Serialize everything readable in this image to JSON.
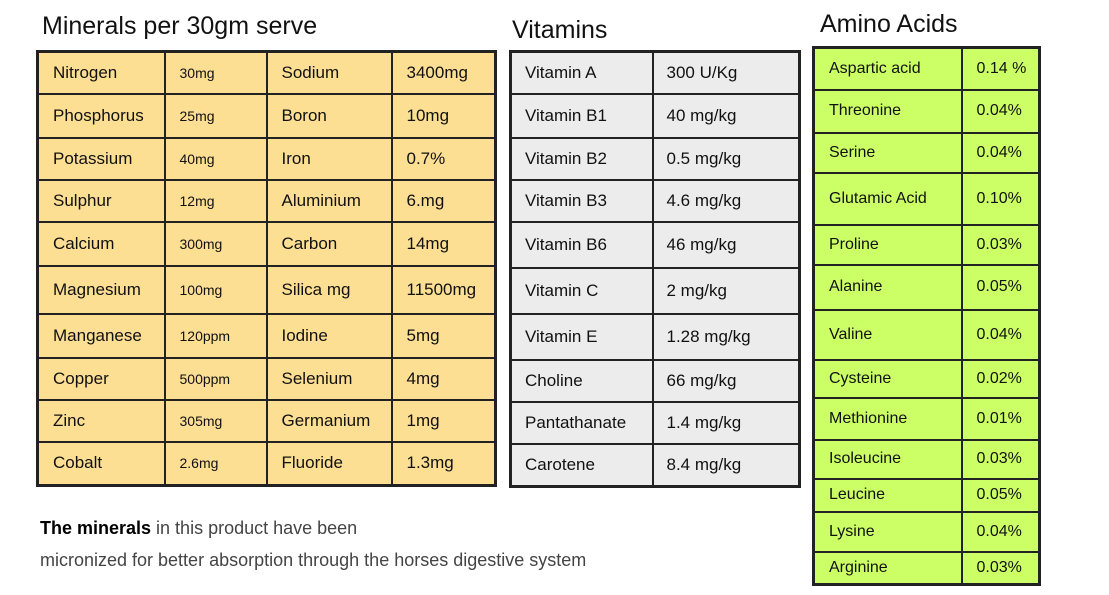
{
  "titles": {
    "minerals": "Minerals per 30gm serve",
    "vitamins": "Vitamins",
    "amino": "Amino Acids"
  },
  "minerals": [
    [
      "Nitrogen",
      "30mg",
      "Sodium",
      "3400mg"
    ],
    [
      "Phosphorus",
      "25mg",
      "Boron",
      "10mg"
    ],
    [
      "Potassium",
      "40mg",
      "Iron",
      "0.7%"
    ],
    [
      "Sulphur",
      "12mg",
      "Aluminium",
      "6.mg"
    ],
    [
      "Calcium",
      "300mg",
      "Carbon",
      "14mg"
    ],
    [
      "Magnesium",
      "100mg",
      "Silica  mg",
      "11500mg"
    ],
    [
      "Manganese",
      "120ppm",
      "Iodine",
      " 5mg"
    ],
    [
      "Copper",
      "500ppm",
      "Selenium",
      "4mg"
    ],
    [
      "Zinc",
      "305mg",
      "Germanium",
      "1mg"
    ],
    [
      "Cobalt",
      "2.6mg",
      "Fluoride",
      "1.3mg"
    ]
  ],
  "vitamins": [
    [
      "Vitamin A",
      "300 U/Kg"
    ],
    [
      "Vitamin B1",
      "40 mg/kg"
    ],
    [
      "Vitamin B2",
      "0.5 mg/kg"
    ],
    [
      "Vitamin B3",
      "4.6  mg/kg"
    ],
    [
      "Vitamin B6",
      "46 mg/kg"
    ],
    [
      "Vitamin C",
      "2 mg/kg"
    ],
    [
      "Vitamin E",
      "1.28 mg/kg"
    ],
    [
      "Choline",
      "66 mg/kg"
    ],
    [
      "Pantathanate",
      "1.4 mg/kg"
    ],
    [
      "Carotene",
      "8.4 mg/kg"
    ]
  ],
  "amino": [
    [
      "Aspartic acid",
      "0.14 %"
    ],
    [
      "Threonine",
      "0.04%"
    ],
    [
      "Serine",
      "0.04%"
    ],
    [
      "Glutamic Acid",
      "0.10%"
    ],
    [
      "Proline",
      "0.03%"
    ],
    [
      "Alanine",
      "0.05%"
    ],
    [
      "Valine",
      "0.04%"
    ],
    [
      "Cysteine",
      "0.02%"
    ],
    [
      "Methionine",
      "0.01%"
    ],
    [
      "Isoleucine",
      "0.03%"
    ],
    [
      "Leucine",
      "0.05%"
    ],
    [
      "Lysine",
      "0.04%"
    ],
    [
      "Arginine",
      "0.03%"
    ]
  ],
  "note": {
    "bold": "The minerals",
    "line1_rest": " in this product have been",
    "line2": "micronized for better absorption through the horses digestive system"
  },
  "colors": {
    "minerals_bg": "#fddf94",
    "vitamins_bg": "#ececec",
    "amino_bg": "#ccff66"
  }
}
